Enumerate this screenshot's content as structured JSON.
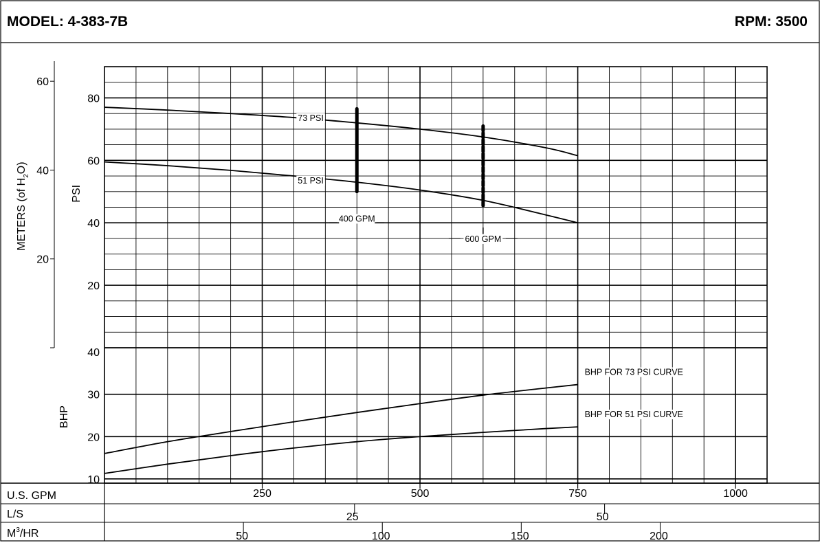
{
  "header": {
    "model_label": "MODEL: 4-383-7B",
    "rpm_label": "RPM: 3500"
  },
  "chart_data": {
    "type": "line",
    "x_unit_label": "U.S. GPM",
    "xlim": [
      0,
      1050
    ],
    "x_ticks": [
      250,
      500,
      750,
      1000
    ],
    "secondary_x_axes": [
      {
        "label": "L/S",
        "ticks": [
          25,
          50
        ]
      },
      {
        "label_base": "M",
        "label_sup": "3",
        "label_tail": "/HR",
        "ticks": [
          50,
          100,
          150,
          200
        ]
      }
    ],
    "panels": [
      {
        "name": "pressure",
        "ylabel": "PSI",
        "ylim": [
          0,
          90
        ],
        "y_ticks": [
          20,
          40,
          60,
          80
        ],
        "secondary_y_axis": {
          "label_pre": "METERS (of H",
          "label_sub": "2",
          "label_post": "O)",
          "ticks": [
            20,
            40,
            60
          ]
        },
        "series": [
          {
            "name": "73 PSI",
            "x": [
              0,
              100,
              200,
              300,
              400,
              500,
              600,
              700,
              750
            ],
            "y": [
              77,
              76.1,
              75,
              73.7,
              72,
              70,
              67.5,
              64,
              61.5
            ]
          },
          {
            "name": "51 PSI",
            "x": [
              0,
              100,
              200,
              300,
              400,
              500,
              600,
              700,
              750
            ],
            "y": [
              59.5,
              58.3,
              56.8,
              55,
              53,
              50.5,
              47.2,
              42.5,
              40
            ]
          }
        ],
        "markers": [
          {
            "label": "400 GPM",
            "x": 400,
            "y_range": [
              50,
              76.5
            ],
            "style": "solid"
          },
          {
            "label": "600 GPM",
            "x": 600,
            "y_range": [
              45.5,
              71
            ],
            "style": "dashed"
          }
        ]
      },
      {
        "name": "bhp",
        "ylabel": "BHP",
        "ylim": [
          9,
          41
        ],
        "y_ticks": [
          10,
          20,
          30,
          40
        ],
        "series": [
          {
            "name": "BHP FOR 73 PSI CURVE",
            "x": [
              0,
              100,
              200,
              300,
              400,
              500,
              600,
              700,
              750
            ],
            "y": [
              16,
              18.8,
              21.2,
              23.5,
              25.7,
              27.8,
              29.8,
              31.5,
              32.3
            ]
          },
          {
            "name": "BHP FOR 51 PSI CURVE",
            "x": [
              0,
              100,
              200,
              300,
              400,
              500,
              600,
              700,
              750
            ],
            "y": [
              11.3,
              13.5,
              15.5,
              17.3,
              18.8,
              20,
              21,
              21.9,
              22.3
            ]
          }
        ]
      }
    ],
    "grid": true
  }
}
